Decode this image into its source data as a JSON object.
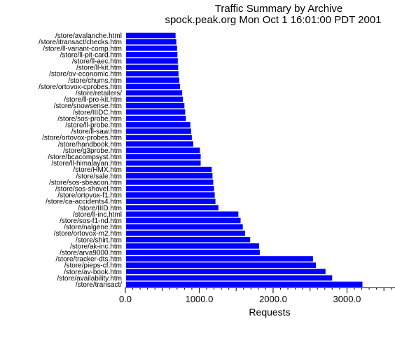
{
  "chart_data": {
    "type": "bar",
    "orientation": "horizontal",
    "title": "Traffic Summary by Archive",
    "subtitle": "spock.peak.org Mon Oct  1 16:01:00 PDT 2001",
    "xlabel": "Requests",
    "ylabel": "",
    "xlim": [
      0,
      3650
    ],
    "xticks": [
      0,
      1000,
      2000,
      3000
    ],
    "xtick_labels": [
      "0.0",
      "1000.0",
      "2000.0",
      "3000.0"
    ],
    "grid": false,
    "legend": "none",
    "bar_color": "#0000ff",
    "categories": [
      "/store/avalanche.html",
      "/store/itransact/checks.htm",
      "/store/ll-variant-comp.htm",
      "/store/ll-pit-card.htm",
      "/store/ll-aec.htm",
      "/store/ll-kit.htm",
      "/store/ov-economic.htm",
      "/store/chums.htm",
      "/store/ortovox-cprobes.htm",
      "/store/retailers/",
      "/store/ll-pro-kit.htm",
      "/store/snowsense.htm",
      "/store/IIIDC.htm",
      "/store/sos-probe.htm",
      "/store/ll-probe.htm",
      "/store/ll-saw.htm",
      "/store/ortovox-probes.htm",
      "/store/handbook.htm",
      "/store/g3probe.htm",
      "/store/bcacompsyst.htm",
      "/store/ll-himalayan.htm",
      "/store/HMX.htm",
      "/store/sale.htm",
      "/store/sos-sbeacon.htm",
      "/store/sos-shovel.htm",
      "/store/ortovox-f1.htm",
      "/store/ca-accidents4.htm",
      "/store/IIID.htm",
      "/store/ll-inc.html",
      "/store/sos-f1-nd.htm",
      "/store/nalgene.htm",
      "/store/ortovox-m2.htm",
      "/store/shirt.htm",
      "/store/ak-inc.htm",
      "/store/arva9000.htm",
      "/store/tracker-dts.htm",
      "/store/pieps-cf.htm",
      "/store/av-book.htm",
      "/store/availability.htm",
      "/store/transact/"
    ],
    "values": [
      670,
      680,
      690,
      695,
      700,
      705,
      710,
      720,
      730,
      760,
      770,
      790,
      800,
      810,
      870,
      880,
      890,
      910,
      1000,
      1010,
      1010,
      1160,
      1170,
      1180,
      1190,
      1200,
      1210,
      1250,
      1520,
      1550,
      1580,
      1610,
      1680,
      1800,
      1810,
      2530,
      2570,
      2700,
      2790,
      3200
    ]
  }
}
